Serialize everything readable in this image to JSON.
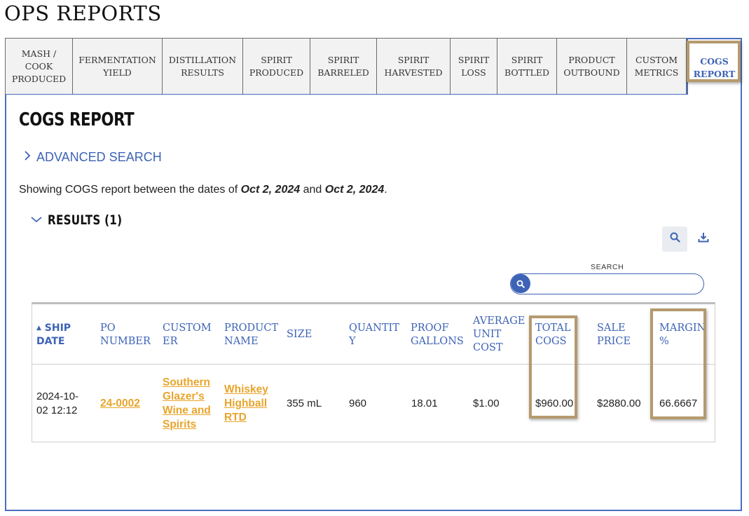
{
  "page": {
    "title": "OPS REPORTS"
  },
  "tabs": [
    {
      "label": "MASH /\nCOOK\nPRODUCED"
    },
    {
      "label": "FERMENTATION\nYIELD"
    },
    {
      "label": "DISTILLATION\nRESULTS"
    },
    {
      "label": "SPIRIT\nPRODUCED"
    },
    {
      "label": "SPIRIT\nBARRELED"
    },
    {
      "label": "SPIRIT\nHARVESTED"
    },
    {
      "label": "SPIRIT\nLOSS"
    },
    {
      "label": "SPIRIT\nBOTTLED"
    },
    {
      "label": "PRODUCT\nOUTBOUND"
    },
    {
      "label": "CUSTOM\nMETRICS"
    },
    {
      "label": "COGS\nREPORT",
      "active": true
    }
  ],
  "report": {
    "heading": "COGS REPORT",
    "advanced_search": "ADVANCED SEARCH",
    "showing_prefix": "Showing COGS report between the dates of",
    "date_from": "Oct 2, 2024",
    "showing_and": "and",
    "date_to": "Oct 2, 2024",
    "showing_suffix": ".",
    "results_label": "RESULTS (1)",
    "search_label": "SEARCH",
    "search_value": ""
  },
  "table": {
    "columns": [
      "SHIP\nDATE",
      "PO\nNUMBER",
      "CUSTOM\nER",
      "PRODUCT\nNAME",
      "SIZE",
      "QUANTIT\nY",
      "PROOF\nGALLONS",
      "AVERAGE\nUNIT\nCOST",
      "TOTAL\nCOGS",
      "SALE\nPRICE",
      "MARGIN\n%"
    ],
    "sort_arrow": "▲",
    "rows": [
      {
        "ship_date": "2024-10-\n02 12:12",
        "po_number": "24-0002",
        "customer": "Southern\nGlazer's\nWine and\nSpirits",
        "product_name": "Whiskey\nHighball\nRTD",
        "size": "355 mL",
        "quantity": "960",
        "proof_gallons": "18.01",
        "avg_unit_cost": "$1.00",
        "total_cogs": "$960.00",
        "sale_price": "$2880.00",
        "margin": "66.6667"
      }
    ]
  },
  "colors": {
    "accent": "#3d63b6",
    "link": "#e8a52b",
    "highlight": "#b59a6e"
  }
}
